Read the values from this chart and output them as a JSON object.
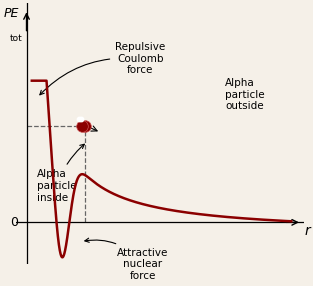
{
  "curve_color": "#8B0000",
  "background_color": "#f5f0e8",
  "ball_color": "#8B0000",
  "dashed_line_color": "#666666",
  "zero_line_color": "#000000",
  "ann_repulsive": "Repulsive\nCoulomb\nforce",
  "ann_alpha_inside": "Alpha\nparticle\ninside",
  "ann_alpha_outside": "Alpha\nparticle\noutside",
  "ann_attractive": "Attractive\nnuclear\nforce",
  "ylabel_main": "PE",
  "ylabel_sub": "tot",
  "xlabel": "r",
  "zero_label": "0",
  "fontsize_ann": 7.5,
  "fontsize_axis": 9,
  "fontsize_sub": 6.5,
  "fontsize_r": 10
}
